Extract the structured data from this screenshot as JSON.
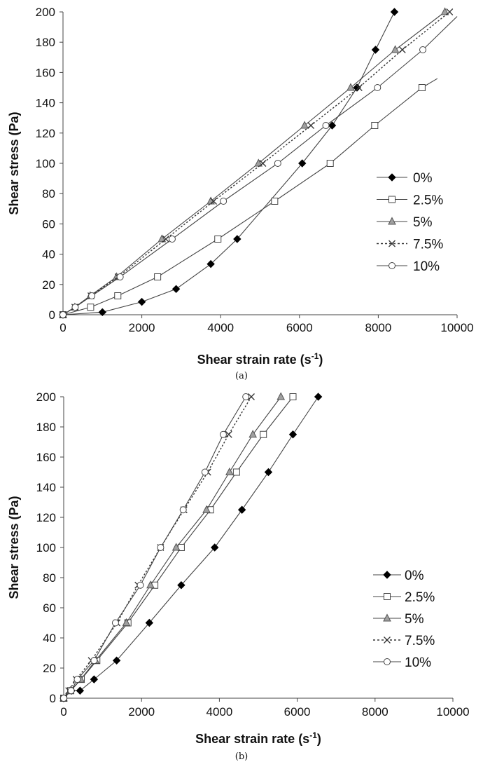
{
  "chart_data": [
    {
      "type": "line",
      "panel": "a",
      "caption": "(a)",
      "xlabel": "Shear strain rate (s",
      "xlabel_sup": "-1",
      "xlabel_end": ")",
      "ylabel": "Shear stress (Pa)",
      "xlim": [
        0,
        10000
      ],
      "ylim": [
        0,
        200
      ],
      "xticks": [
        0,
        2000,
        4000,
        6000,
        8000,
        10000
      ],
      "yticks": [
        0,
        20,
        40,
        60,
        80,
        100,
        120,
        140,
        160,
        180,
        200
      ],
      "legend_position": "right-middle",
      "series": [
        {
          "name": "0%",
          "marker": "diamond",
          "dashed": false,
          "x": [
            0,
            1000,
            2000,
            2870,
            3750,
            4420,
            6070,
            6830,
            7460,
            7930,
            8410
          ],
          "y": [
            0,
            1.7,
            8.5,
            17,
            33.5,
            50,
            100,
            125,
            150,
            175,
            200
          ]
        },
        {
          "name": "2.5%",
          "marker": "square",
          "dashed": false,
          "x": [
            0,
            700,
            1390,
            2400,
            3930,
            5370,
            6780,
            7910,
            9110
          ],
          "y": [
            0,
            5,
            12.5,
            25,
            50,
            75,
            100,
            125,
            150
          ],
          "tail_x": [
            9110,
            9500
          ],
          "tail_y": [
            150,
            156
          ]
        },
        {
          "name": "5%",
          "marker": "triangle",
          "dashed": false,
          "x": [
            0,
            300,
            690,
            1360,
            2510,
            3750,
            4960,
            6130,
            7300,
            8430,
            9690
          ],
          "y": [
            0,
            5,
            12.5,
            25,
            50,
            75,
            100,
            125,
            150,
            175,
            200
          ]
        },
        {
          "name": "7.5%",
          "marker": "x",
          "dashed": true,
          "x": [
            0,
            300,
            710,
            1400,
            2610,
            3820,
            5070,
            6290,
            7510,
            8610,
            9810
          ],
          "y": [
            0,
            5,
            12.5,
            25,
            50,
            75,
            100,
            125,
            150,
            175,
            200
          ]
        },
        {
          "name": "10%",
          "marker": "circle",
          "dashed": false,
          "x": [
            0,
            310,
            730,
            1450,
            2770,
            4070,
            5450,
            6670,
            7980,
            9130
          ],
          "y": [
            0,
            5,
            12.5,
            25,
            50,
            75,
            100,
            125,
            150,
            175
          ],
          "tail_x": [
            9130,
            10000
          ],
          "tail_y": [
            175,
            197
          ]
        }
      ]
    },
    {
      "type": "line",
      "panel": "b",
      "caption": "(b)",
      "xlabel": "Shear strain rate (s",
      "xlabel_sup": "-1",
      "xlabel_end": ")",
      "ylabel": "Shear stress (Pa)",
      "xlim": [
        0,
        10000
      ],
      "ylim": [
        0,
        200
      ],
      "xticks": [
        0,
        2000,
        4000,
        6000,
        8000,
        10000
      ],
      "yticks": [
        0,
        20,
        40,
        60,
        80,
        100,
        120,
        140,
        160,
        180,
        200
      ],
      "legend_position": "right-middle",
      "series": [
        {
          "name": "0%",
          "marker": "diamond",
          "dashed": false,
          "x": [
            0,
            200,
            420,
            780,
            1360,
            2200,
            3020,
            3880,
            4580,
            5260,
            5890,
            6540
          ],
          "y": [
            0,
            5,
            5,
            12.5,
            25,
            50,
            75,
            100,
            125,
            150,
            175,
            200
          ]
        },
        {
          "name": "2.5%",
          "marker": "square",
          "dashed": false,
          "x": [
            0,
            180,
            450,
            850,
            1650,
            2340,
            3020,
            3770,
            4440,
            5130,
            5890
          ],
          "y": [
            0,
            5,
            12.5,
            25,
            50,
            75,
            100,
            125,
            150,
            175,
            200
          ]
        },
        {
          "name": "5%",
          "marker": "triangle",
          "dashed": false,
          "x": [
            0,
            170,
            440,
            820,
            1610,
            2230,
            2890,
            3670,
            4260,
            4860,
            5580
          ],
          "y": [
            0,
            5,
            12.5,
            25,
            50,
            75,
            100,
            125,
            150,
            175,
            200
          ]
        },
        {
          "name": "7.5%",
          "marker": "x",
          "dashed": true,
          "x": [
            0,
            130,
            320,
            710,
            1370,
            1910,
            2490,
            3090,
            3700,
            4240,
            4820
          ],
          "y": [
            0,
            5,
            12.5,
            25,
            50,
            75,
            100,
            125,
            150,
            175,
            200
          ]
        },
        {
          "name": "10%",
          "marker": "circle",
          "dashed": false,
          "x": [
            0,
            190,
            350,
            780,
            1330,
            1970,
            2490,
            3070,
            3630,
            4100,
            4680
          ],
          "y": [
            0,
            5,
            12.5,
            25,
            50,
            75,
            100,
            125,
            150,
            175,
            200
          ]
        }
      ]
    }
  ]
}
